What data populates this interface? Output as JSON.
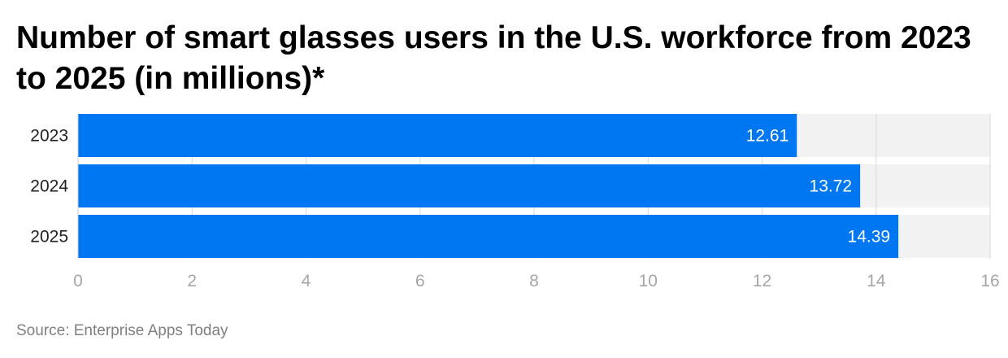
{
  "header": {
    "title": "Number of smart glasses users in the U.S. workforce from 2023 to 2025 (in millions)*"
  },
  "footer": {
    "source": "Source: Enterprise Apps Today"
  },
  "colors": {
    "bar": "#0077f2",
    "track": "#f2f2f2",
    "grid": "#d9d9d9",
    "tick_text": "#a6a6a6",
    "category_text": "#222222",
    "value_label": "#ffffff"
  },
  "chart_data": {
    "type": "bar",
    "orientation": "horizontal",
    "categories": [
      "2023",
      "2024",
      "2025"
    ],
    "values": [
      12.61,
      13.72,
      14.39
    ],
    "value_labels": [
      "12.61",
      "13.72",
      "14.39"
    ],
    "xlim": [
      0,
      16
    ],
    "xticks": [
      0,
      2,
      4,
      6,
      8,
      10,
      12,
      14,
      16
    ],
    "xtick_labels": [
      "0",
      "2",
      "4",
      "6",
      "8",
      "10",
      "12",
      "14",
      "16"
    ],
    "grid": true,
    "legend": false
  }
}
